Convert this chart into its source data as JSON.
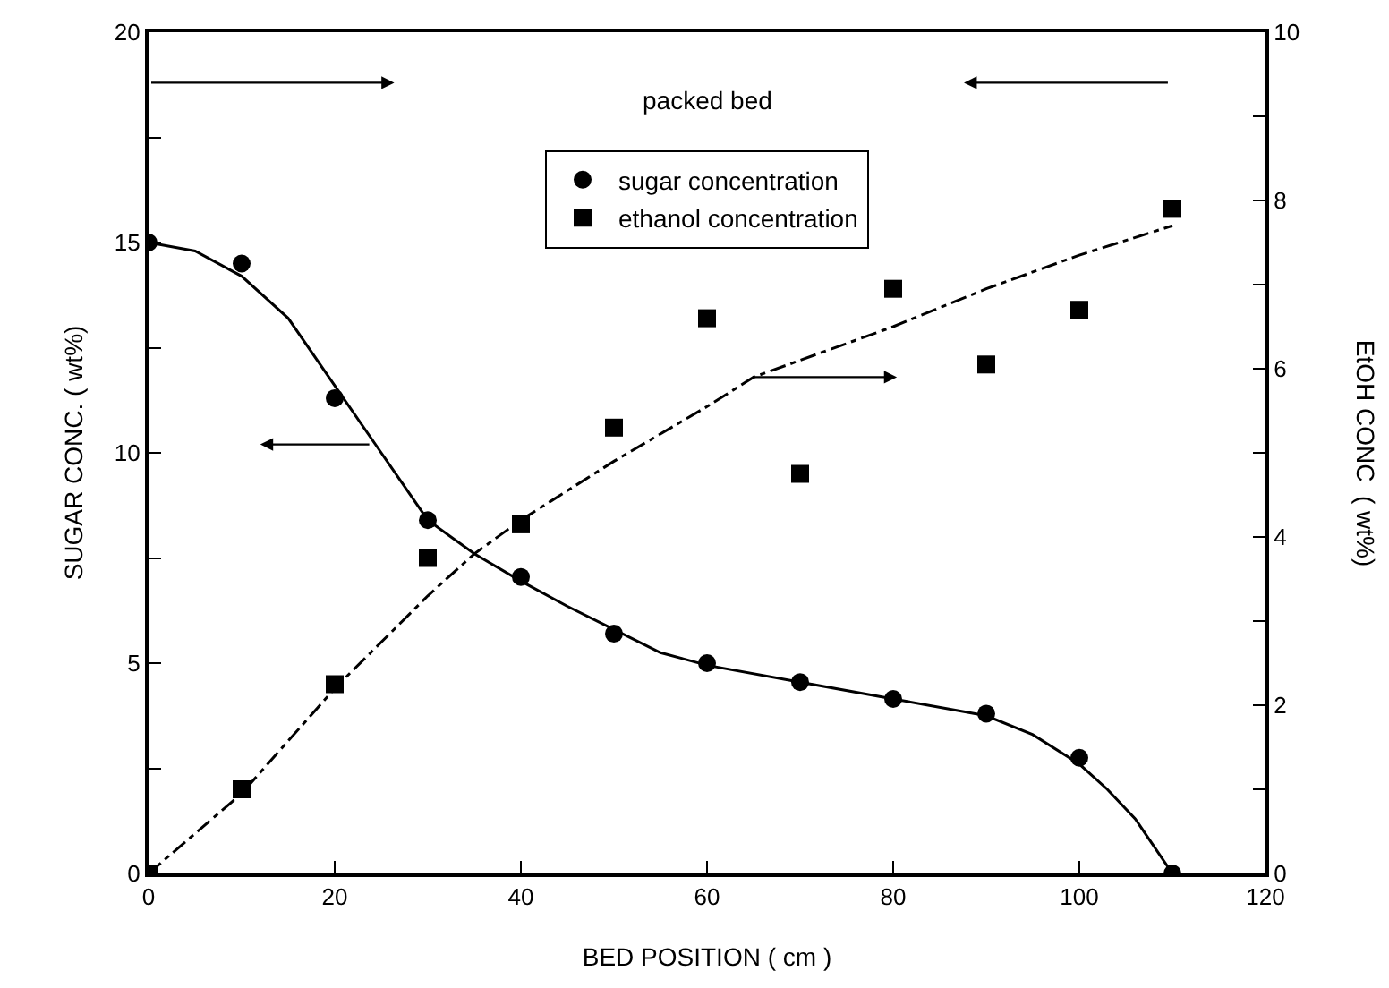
{
  "chart_data": {
    "type": "scatter",
    "xlabel": "BED POSITION ( cm )",
    "ylabel": "SUGAR CONC. ( wt%)",
    "y2label": "EtOH CONC  ( wt%)",
    "annotations": [
      "packed bed"
    ],
    "xlim": [
      0,
      120
    ],
    "xticks": [
      0,
      20,
      40,
      60,
      80,
      100,
      120
    ],
    "ylim": [
      0,
      20
    ],
    "yticks": [
      0,
      {
        "value": 2.5,
        "label": null
      },
      5,
      {
        "value": 7.5,
        "label": null
      },
      10,
      {
        "value": 12.5,
        "label": null
      },
      15,
      {
        "value": 17.5,
        "label": null
      },
      20
    ],
    "y2lim": [
      0,
      10
    ],
    "y2ticks": [
      0,
      {
        "value": 1,
        "label": null
      },
      2,
      {
        "value": 3,
        "label": null
      },
      4,
      {
        "value": 5,
        "label": null
      },
      6,
      {
        "value": 7,
        "label": null
      },
      8,
      {
        "value": 9,
        "label": null
      },
      10
    ],
    "legend": "top",
    "grid": false,
    "series": [
      {
        "name": "sugar concentration",
        "color": "#000000",
        "marker": "circle",
        "x": [
          0,
          10,
          20,
          30,
          40,
          50,
          60,
          70,
          80,
          90,
          100,
          110
        ],
        "values": [
          15,
          14.5,
          11.3,
          8.4,
          7.05,
          5.7,
          5.0,
          4.55,
          4.15,
          3.8,
          2.75,
          0
        ]
      },
      {
        "name": "ethanol concentration",
        "color": "#000000",
        "marker": "square",
        "axis": "y2",
        "x": [
          0,
          10,
          20,
          30,
          40,
          50,
          60,
          70,
          80,
          90,
          100,
          110
        ],
        "values": [
          0,
          1.0,
          2.25,
          3.75,
          4.15,
          5.3,
          6.6,
          4.75,
          6.95,
          6.05,
          6.7,
          7.9
        ]
      },
      {
        "type": "line",
        "color": "#000000",
        "line_style": "solid",
        "x": [
          0,
          5,
          10,
          15,
          20,
          25,
          30,
          35,
          40,
          45,
          50,
          55,
          60,
          70,
          80,
          90,
          95,
          100,
          103,
          106,
          110
        ],
        "values": [
          15,
          14.8,
          14.2,
          13.2,
          11.6,
          10.0,
          8.4,
          7.6,
          6.95,
          6.35,
          5.8,
          5.25,
          4.95,
          4.55,
          4.15,
          3.75,
          3.3,
          2.6,
          2.0,
          1.3,
          0
        ]
      },
      {
        "type": "line",
        "color": "#000000",
        "line_style": "dashed",
        "axis": "y2",
        "x": [
          0,
          10,
          20,
          30,
          35,
          40,
          50,
          60,
          65,
          70,
          80,
          90,
          100,
          110
        ],
        "values": [
          0,
          0.95,
          2.2,
          3.3,
          3.8,
          4.2,
          4.9,
          5.55,
          5.9,
          6.1,
          6.5,
          6.95,
          7.35,
          7.7
        ]
      }
    ]
  }
}
